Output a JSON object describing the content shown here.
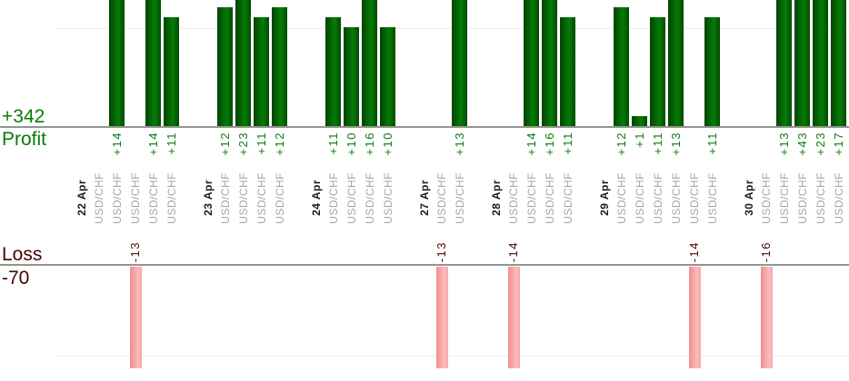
{
  "chart_data": {
    "type": "bar",
    "description": "Daily trade profit/loss bar chart, dual panel (profit above, loss below), grouped by date",
    "instrument": "USD/CHF",
    "profit_panel": {
      "axis_label": "Profit",
      "total": "+342",
      "text_color": "#087c08",
      "bar_color": "#067c06"
    },
    "loss_panel": {
      "axis_label": "Loss",
      "total": "-70",
      "text_color": "#420606",
      "bar_color": "#f6a7a7"
    },
    "legend_position": "none",
    "grid": "faint horizontal gridlines",
    "groups": [
      {
        "date": "22 Apr",
        "trades": [
          {
            "pair": "USD/CHF",
            "value": null,
            "label": ""
          },
          {
            "pair": "USD/CHF",
            "value": 14,
            "label": "+14"
          },
          {
            "pair": "USD/CHF",
            "value": -13,
            "label": "-13"
          },
          {
            "pair": "USD/CHF",
            "value": 14,
            "label": "+14"
          },
          {
            "pair": "USD/CHF",
            "value": 11,
            "label": "+11"
          }
        ]
      },
      {
        "date": "23 Apr",
        "trades": [
          {
            "pair": "USD/CHF",
            "value": 12,
            "label": "+12"
          },
          {
            "pair": "USD/CHF",
            "value": 23,
            "label": "+23"
          },
          {
            "pair": "USD/CHF",
            "value": 11,
            "label": "+11"
          },
          {
            "pair": "USD/CHF",
            "value": 12,
            "label": "+12"
          }
        ]
      },
      {
        "date": "24 Apr",
        "trades": [
          {
            "pair": "USD/CHF",
            "value": 11,
            "label": "+11"
          },
          {
            "pair": "USD/CHF",
            "value": 10,
            "label": "+10"
          },
          {
            "pair": "USD/CHF",
            "value": 16,
            "label": "+16"
          },
          {
            "pair": "USD/CHF",
            "value": 10,
            "label": "+10"
          }
        ]
      },
      {
        "date": "27 Apr",
        "trades": [
          {
            "pair": "USD/CHF",
            "value": -13,
            "label": "-13"
          },
          {
            "pair": "USD/CHF",
            "value": 13,
            "label": "+13"
          }
        ]
      },
      {
        "date": "28 Apr",
        "trades": [
          {
            "pair": "USD/CHF",
            "value": -14,
            "label": "-14"
          },
          {
            "pair": "USD/CHF",
            "value": 14,
            "label": "+14"
          },
          {
            "pair": "USD/CHF",
            "value": 16,
            "label": "+16"
          },
          {
            "pair": "USD/CHF",
            "value": 11,
            "label": "+11"
          }
        ]
      },
      {
        "date": "29 Apr",
        "trades": [
          {
            "pair": "USD/CHF",
            "value": 12,
            "label": "+12"
          },
          {
            "pair": "USD/CHF",
            "value": 1,
            "label": "+1"
          },
          {
            "pair": "USD/CHF",
            "value": 11,
            "label": "+11"
          },
          {
            "pair": "USD/CHF",
            "value": 13,
            "label": "+13"
          },
          {
            "pair": "USD/CHF",
            "value": -14,
            "label": "-14"
          },
          {
            "pair": "USD/CHF",
            "value": 11,
            "label": "+11"
          }
        ]
      },
      {
        "date": "30 Apr",
        "trades": [
          {
            "pair": "USD/CHF",
            "value": -16,
            "label": "-16"
          },
          {
            "pair": "USD/CHF",
            "value": 13,
            "label": "+13"
          },
          {
            "pair": "USD/CHF",
            "value": 43,
            "label": "+43"
          },
          {
            "pair": "USD/CHF",
            "value": 23,
            "label": "+23"
          },
          {
            "pair": "USD/CHF",
            "value": 17,
            "label": "+17"
          }
        ]
      }
    ],
    "colors": {
      "axis_line": "#949494",
      "gridline": "#ededed",
      "date_text": "#1c1c1c",
      "pair_text": "#a6a6a6",
      "profit_bar_mid": "#067c06",
      "loss_bar_mid": "#f6a7a7"
    }
  }
}
